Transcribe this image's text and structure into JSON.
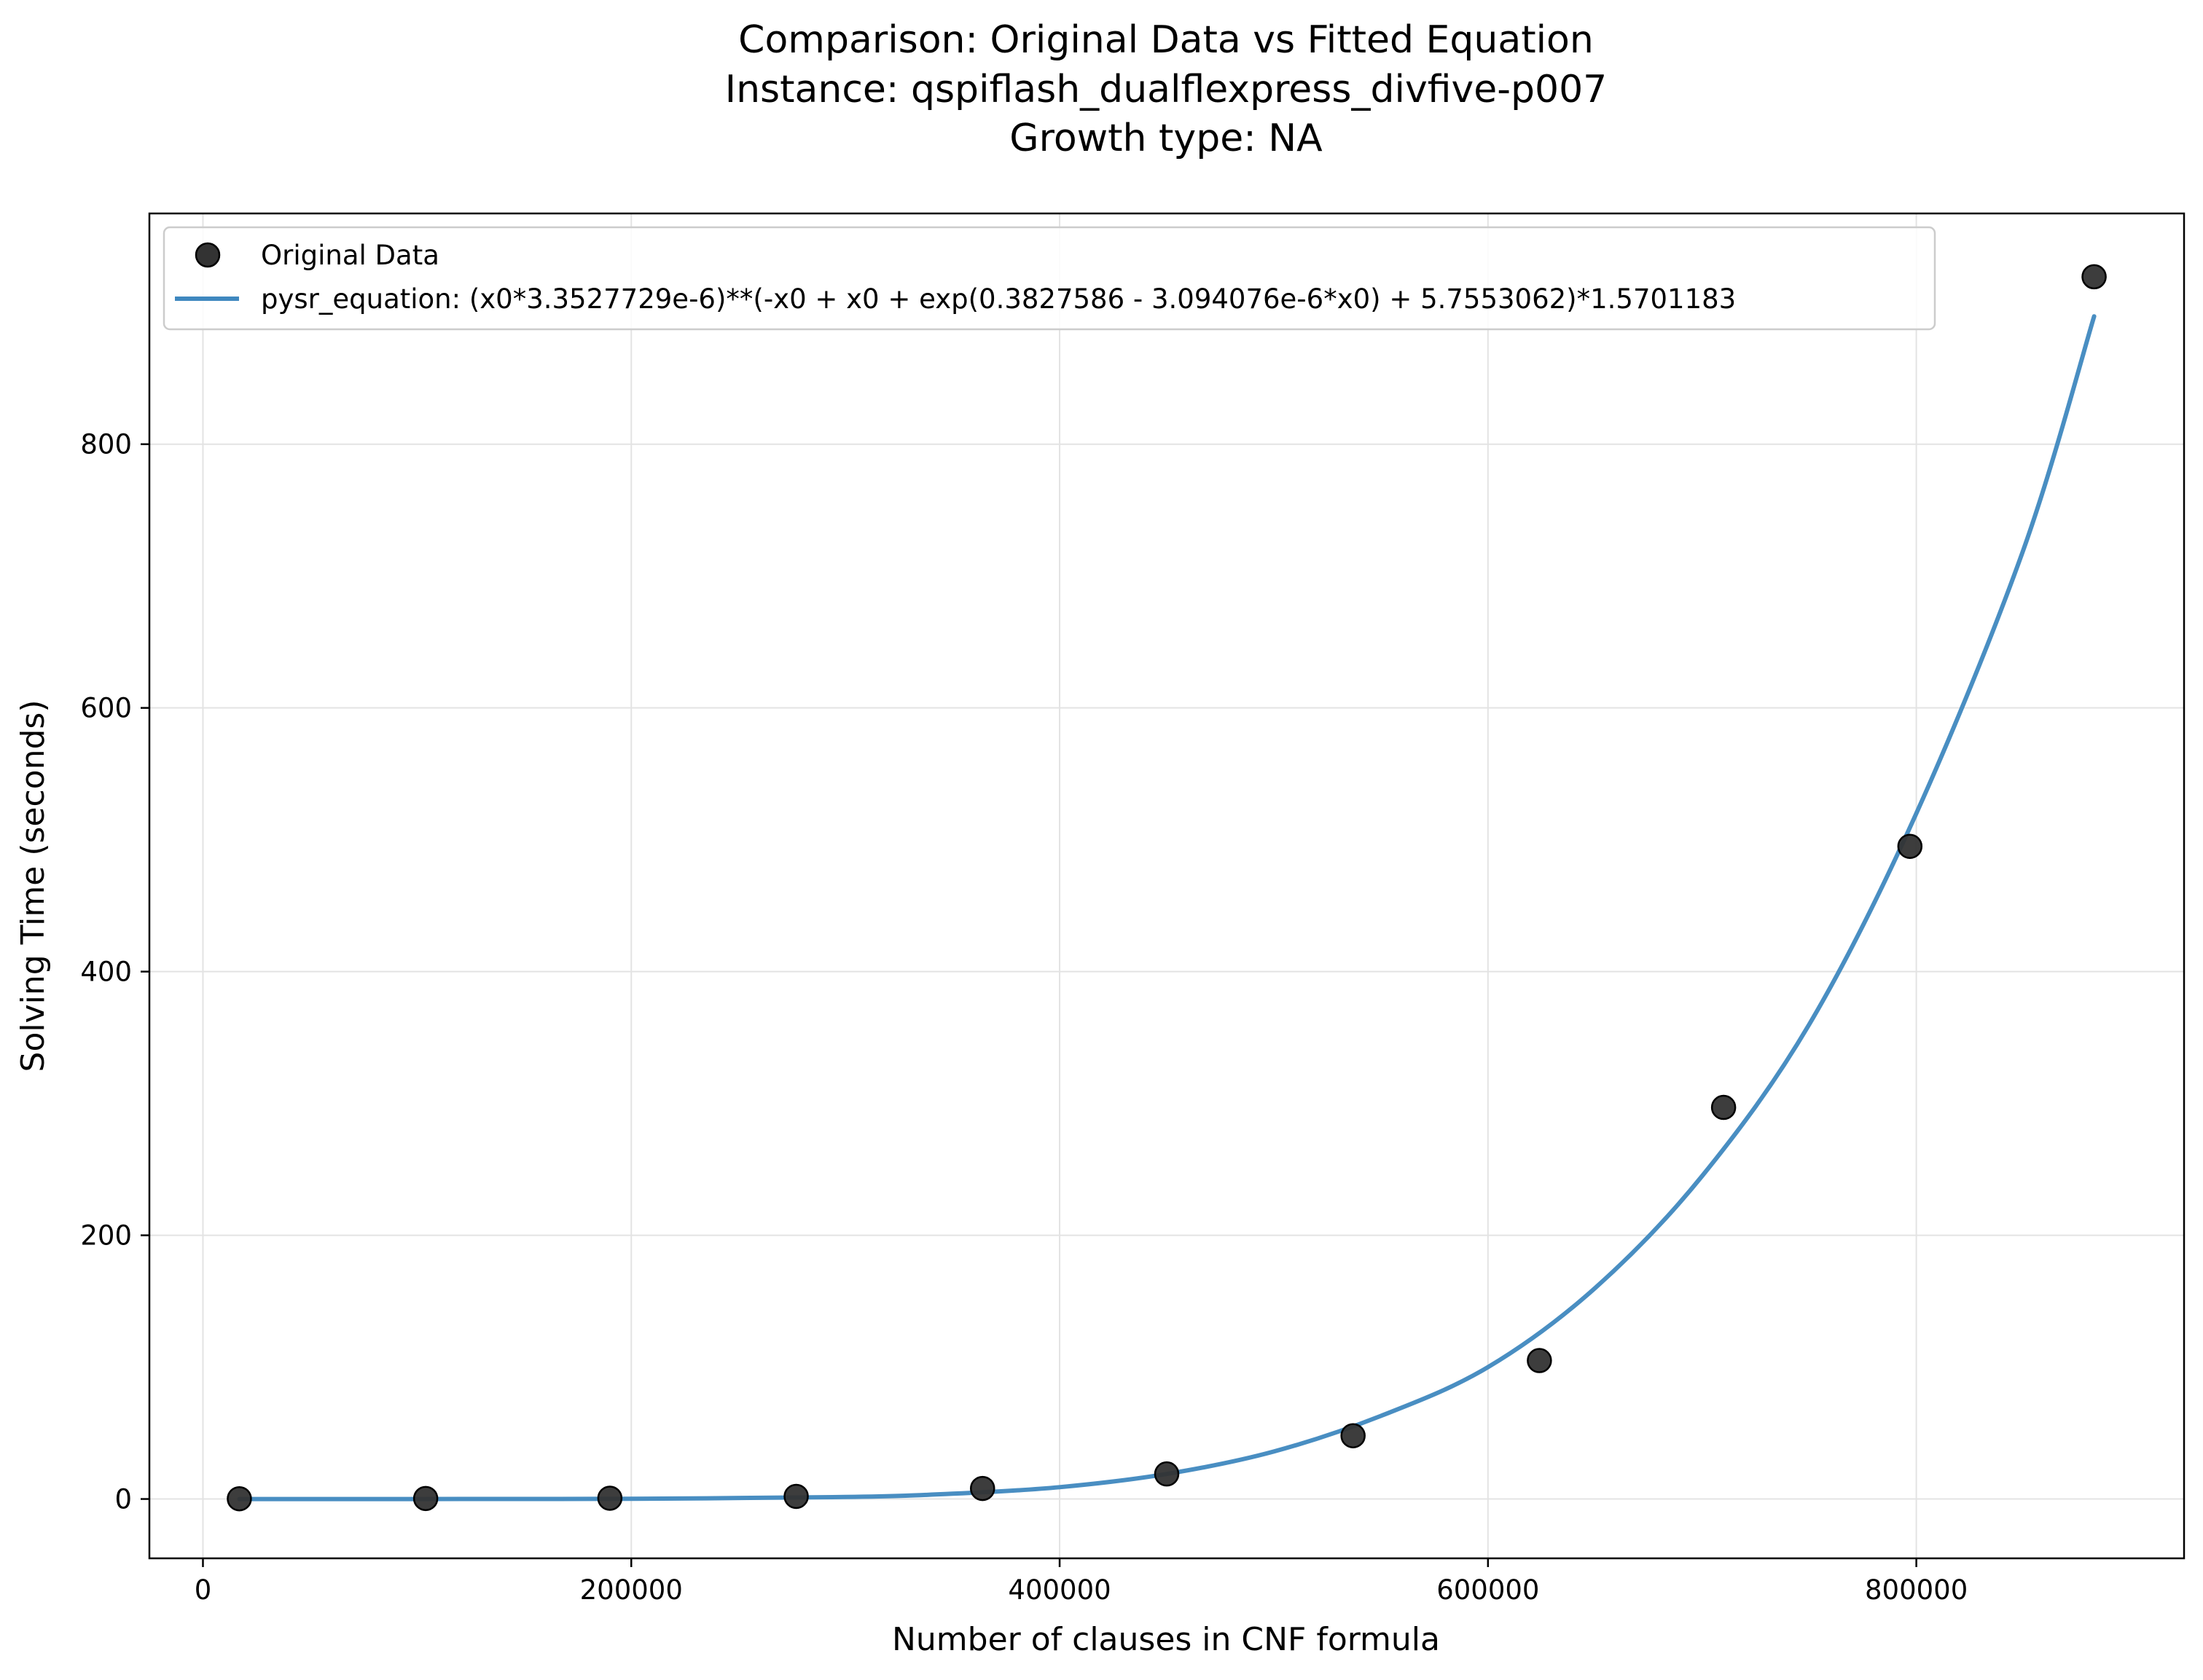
{
  "chart_data": {
    "type": "scatter",
    "title_lines": [
      "Comparison: Original Data vs Fitted Equation",
      "Instance: qspiflash_dualflexpress_divfive-p007",
      "Growth type: NA"
    ],
    "xlabel": "Number of clauses in CNF formula",
    "ylabel": "Solving Time (seconds)",
    "xlim": [
      -25000,
      925000
    ],
    "ylim": [
      -45,
      975
    ],
    "xticks": [
      0,
      200000,
      400000,
      600000,
      800000
    ],
    "xtick_labels": [
      "0",
      "200000",
      "400000",
      "600000",
      "800000"
    ],
    "yticks": [
      0,
      200,
      400,
      600,
      800
    ],
    "ytick_labels": [
      "0",
      "200",
      "400",
      "600",
      "800"
    ],
    "grid": true,
    "legend_position": "upper-left",
    "series": [
      {
        "name": "Original Data",
        "kind": "scatter",
        "color": "#333333",
        "x": [
          17000,
          104000,
          190000,
          277000,
          364000,
          450000,
          537000,
          624000,
          710000,
          797000,
          883000
        ],
        "y": [
          0.2,
          0.4,
          0.6,
          2,
          8,
          19,
          48,
          105,
          297,
          495,
          927
        ]
      },
      {
        "name": "pysr_equation: (x0*3.3527729e-6)**(-x0 + x0 + exp(0.3827586 - 3.094076e-6*x0) + 5.7553062)*1.5701183",
        "kind": "line",
        "color": "#3f88bf",
        "x": [
          17000,
          100000,
          200000,
          300000,
          350000,
          400000,
          450000,
          500000,
          550000,
          600000,
          650000,
          700000,
          750000,
          800000,
          850000,
          883000
        ],
        "y": [
          0,
          0,
          0.2,
          1.5,
          4,
          9,
          19,
          36,
          63,
          100,
          160,
          245,
          360,
          520,
          720,
          897
        ]
      }
    ]
  }
}
